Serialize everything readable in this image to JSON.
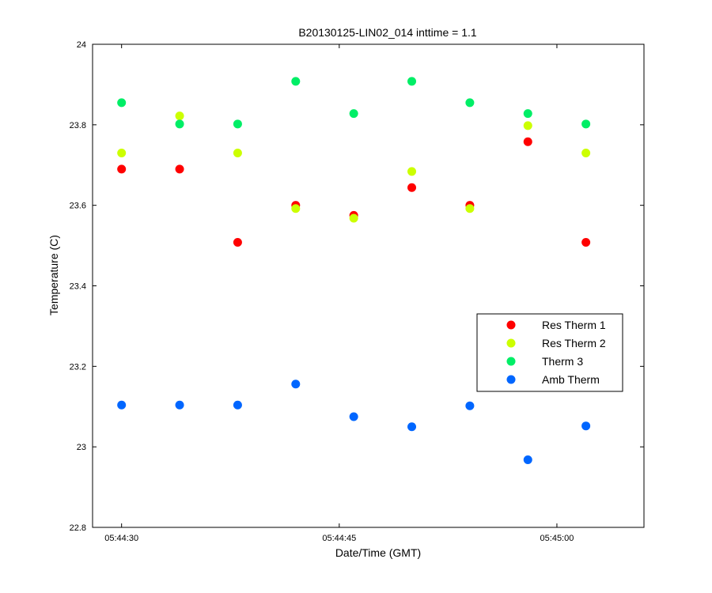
{
  "chart_data": {
    "type": "scatter",
    "title": "B20130125-LIN02_014 inttime = 1.1",
    "xlabel": "Date/Time (GMT)",
    "ylabel": "Temperature (C)",
    "xlim": [
      "05:44:28",
      "05:45:06"
    ],
    "ylim": [
      22.8,
      24
    ],
    "x_ticks": [
      "05:44:30",
      "05:44:45",
      "05:45:00"
    ],
    "y_ticks": [
      "22.8",
      "23",
      "23.2",
      "23.4",
      "23.6",
      "23.8",
      "24"
    ],
    "grid": false,
    "legend_position": "right-middle",
    "x": [
      "05:44:30",
      "05:44:34",
      "05:44:38",
      "05:44:42",
      "05:44:46",
      "05:44:50",
      "05:44:54",
      "05:44:58",
      "05:45:02"
    ],
    "series": [
      {
        "name": "Res Therm 1",
        "color": "#ff0000",
        "values": [
          23.69,
          23.69,
          23.508,
          null,
          23.575,
          23.644,
          23.6,
          23.758,
          23.508
        ],
        "extra_points": [
          {
            "x": "05:44:42",
            "y": 23.6
          }
        ]
      },
      {
        "name": "Res Therm 2",
        "color": "#ccff00",
        "values": [
          23.73,
          23.822,
          23.73,
          23.592,
          23.568,
          23.684,
          23.592,
          23.798,
          23.73
        ]
      },
      {
        "name": "Therm 3",
        "color": "#00ee66",
        "values": [
          23.855,
          23.802,
          23.802,
          23.908,
          23.828,
          23.908,
          23.855,
          23.828,
          23.802
        ]
      },
      {
        "name": "Amb Therm",
        "color": "#0066ff",
        "values": [
          23.104,
          23.104,
          23.104,
          23.156,
          23.075,
          23.05,
          23.102,
          22.968,
          23.052
        ]
      }
    ]
  }
}
